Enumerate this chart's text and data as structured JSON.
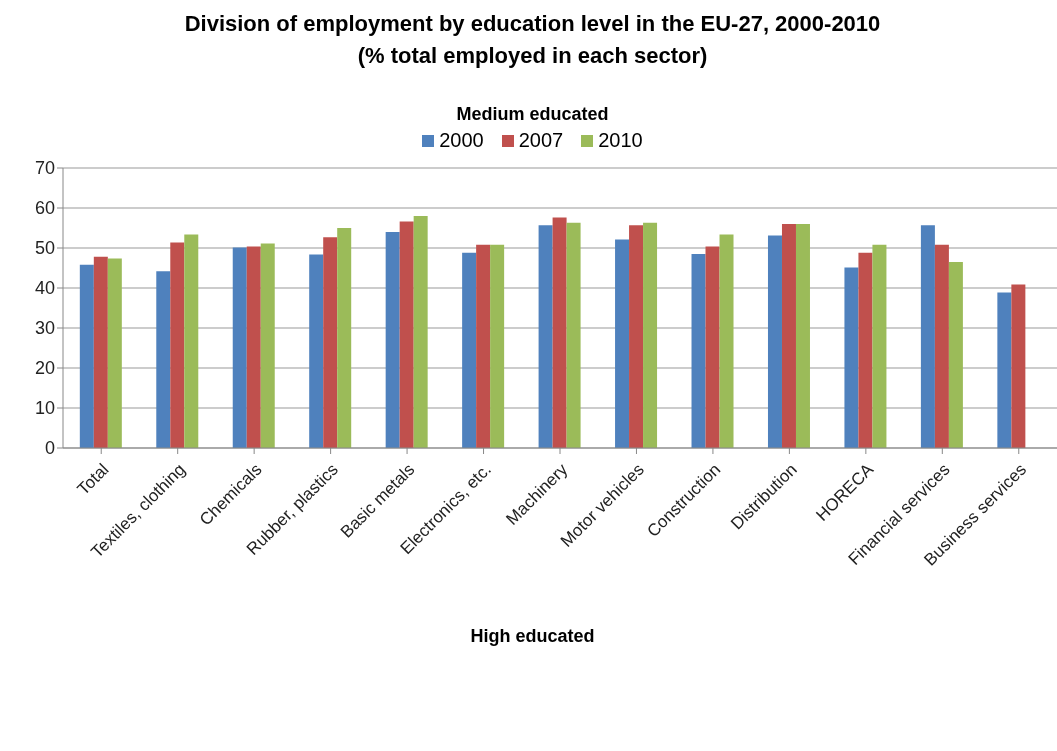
{
  "chart_data": {
    "type": "bar",
    "title": "Division of employment by education level in the EU-27, 2000-2010\n(% total employed in each sector)",
    "subtitle": "Medium educated",
    "categories": [
      "Total",
      "Textiles, clothing",
      "Chemicals",
      "Rubber, plastics",
      "Basic metals",
      "Electronics, etc.",
      "Machinery",
      "Motor vehicles",
      "Construction",
      "Distribution",
      "HORECA",
      "Financial services",
      "Business services"
    ],
    "series": [
      {
        "name": "2000",
        "color": "#4f81bd",
        "values": [
          45.8,
          44.2,
          50.1,
          48.4,
          54.0,
          48.8,
          55.7,
          52.1,
          48.5,
          53.1,
          45.1,
          55.7,
          38.9
        ]
      },
      {
        "name": "2007",
        "color": "#c0504d",
        "values": [
          47.8,
          51.4,
          50.4,
          52.7,
          56.6,
          50.8,
          57.6,
          55.7,
          50.4,
          56.0,
          48.8,
          50.8,
          40.9
        ]
      },
      {
        "name": "2010",
        "color": "#9bbb59",
        "values": [
          47.4,
          53.4,
          51.1,
          55.0,
          58.0,
          50.8,
          56.3,
          56.3,
          53.4,
          56.0,
          50.8,
          46.5,
          null
        ]
      }
    ],
    "ylim": [
      0,
      70
    ],
    "yticks": [
      0,
      10,
      20,
      30,
      40,
      50,
      60,
      70
    ],
    "grid": "y",
    "legend": "top",
    "annotations": [
      "High educated"
    ]
  }
}
